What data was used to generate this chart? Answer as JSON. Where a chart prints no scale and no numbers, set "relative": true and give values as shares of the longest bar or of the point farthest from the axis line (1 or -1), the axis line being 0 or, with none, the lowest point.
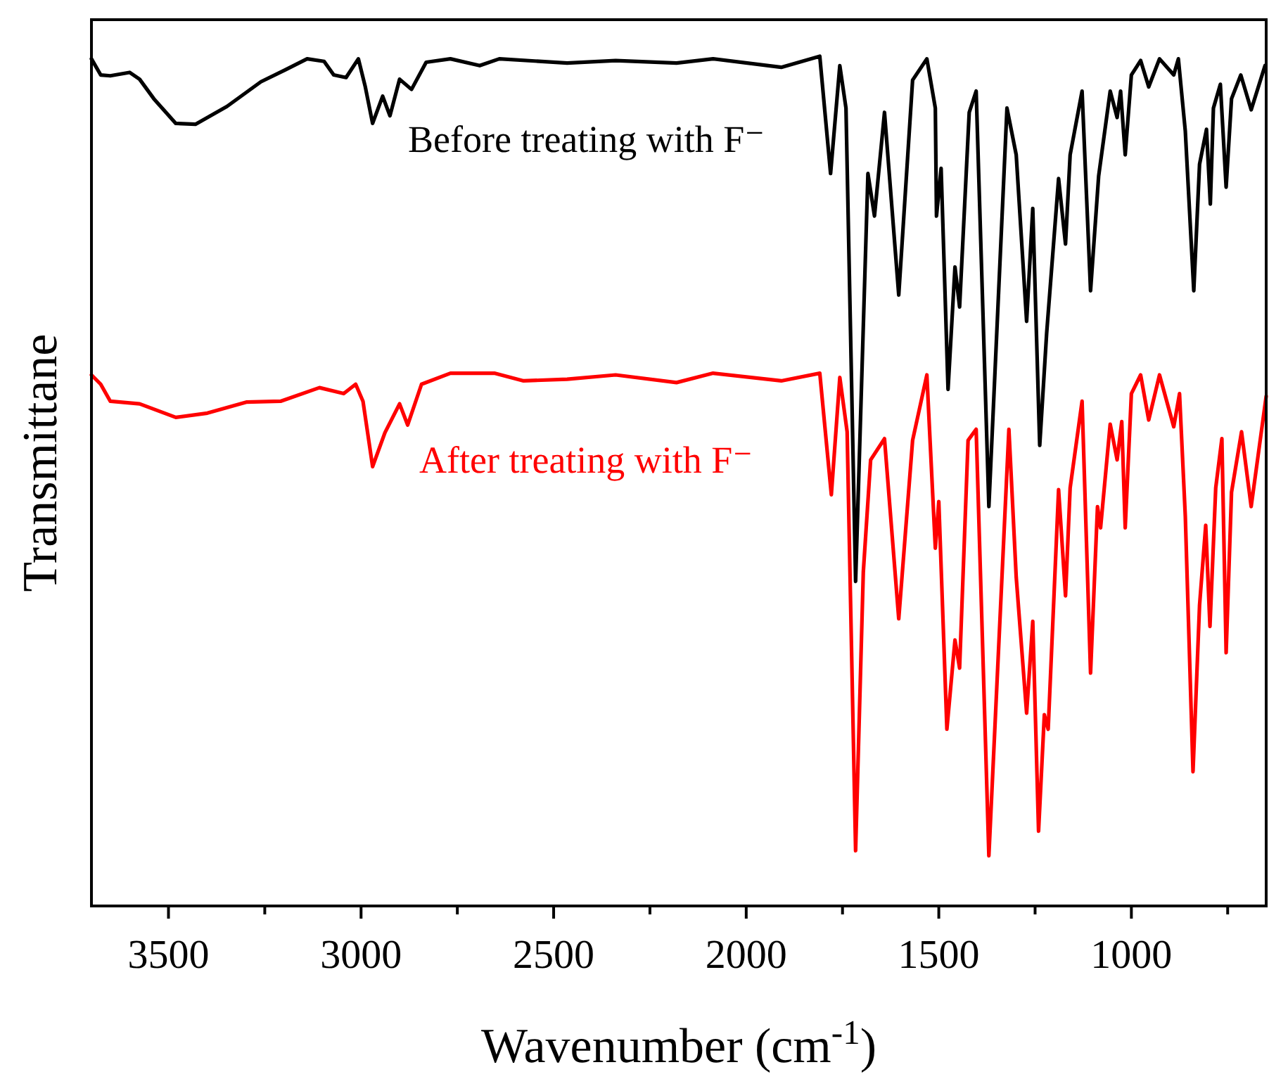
{
  "chart_data": {
    "type": "line",
    "relative": true,
    "xlabel": "Wavenumber (cm$^{-1}$)",
    "ylabel": "Transmittane",
    "xlim": [
      3700,
      650
    ],
    "xticks": [
      3500,
      {
        "value": 3250,
        "label": null
      },
      3000,
      {
        "value": 2750,
        "label": null
      },
      2500,
      {
        "value": 2250,
        "label": null
      },
      2000,
      {
        "value": 1750,
        "label": null
      },
      1500,
      {
        "value": 1250,
        "label": null
      },
      1000,
      {
        "value": 750,
        "label": null
      }
    ],
    "grid": false,
    "line_style": "solid",
    "tick_labels": "x",
    "series": [
      {
        "name": "Before treating with F⁻",
        "color": "#000000",
        "x": [
          3700,
          3676,
          3651,
          3601,
          3575,
          3538,
          3481,
          3430,
          3348,
          3260,
          3197,
          3140,
          3096,
          3071,
          3039,
          3007,
          2989,
          2970,
          2944,
          2925,
          2900,
          2869,
          2831,
          2768,
          2692,
          2641,
          2465,
          2339,
          2181,
          2086,
          1909,
          1809,
          1781,
          1757,
          1741,
          1716,
          1684,
          1667,
          1641,
          1604,
          1568,
          1531,
          1509,
          1506,
          1494,
          1476,
          1458,
          1446,
          1421,
          1403,
          1370,
          1323,
          1299,
          1272,
          1256,
          1238,
          1220,
          1189,
          1171,
          1159,
          1128,
          1106,
          1085,
          1055,
          1037,
          1028,
          1016,
          1000,
          976,
          955,
          927,
          890,
          878,
          860,
          838,
          823,
          805,
          795,
          787,
          769,
          754,
          740,
          716,
          689,
          653
        ],
        "values": [
          0.997,
          0.978,
          0.977,
          0.981,
          0.973,
          0.95,
          0.921,
          0.92,
          0.941,
          0.97,
          0.984,
          0.997,
          0.994,
          0.978,
          0.975,
          0.997,
          0.964,
          0.921,
          0.953,
          0.93,
          0.973,
          0.961,
          0.993,
          0.997,
          0.989,
          0.997,
          0.992,
          0.995,
          0.992,
          0.997,
          0.987,
          1,
          0.862,
          0.989,
          0.939,
          0.382,
          0.862,
          0.812,
          0.934,
          0.719,
          0.972,
          0.997,
          0.939,
          0.812,
          0.868,
          0.608,
          0.752,
          0.705,
          0.934,
          0.959,
          0.47,
          0.939,
          0.884,
          0.688,
          0.821,
          0.542,
          0.674,
          0.856,
          0.779,
          0.884,
          0.959,
          0.724,
          0.859,
          0.959,
          0.928,
          0.959,
          0.884,
          0.978,
          0.995,
          0.964,
          0.997,
          0.978,
          0.997,
          0.912,
          0.724,
          0.873,
          0.914,
          0.826,
          0.939,
          0.967,
          0.846,
          0.95,
          0.978,
          0.937,
          0.989
        ]
      },
      {
        "name": "After treating with F⁻",
        "color": "#ff0000",
        "x": [
          3700,
          3676,
          3651,
          3575,
          3481,
          3399,
          3298,
          3209,
          3108,
          3045,
          3014,
          2995,
          2970,
          2938,
          2900,
          2879,
          2843,
          2768,
          2654,
          2578,
          2465,
          2339,
          2181,
          2086,
          1909,
          1809,
          1779,
          1757,
          1738,
          1716,
          1696,
          1677,
          1641,
          1604,
          1568,
          1531,
          1509,
          1500,
          1479,
          1458,
          1446,
          1424,
          1403,
          1370,
          1318,
          1299,
          1272,
          1256,
          1241,
          1226,
          1216,
          1189,
          1171,
          1159,
          1128,
          1106,
          1088,
          1080,
          1055,
          1037,
          1025,
          1016,
          1000,
          976,
          955,
          927,
          890,
          875,
          860,
          840,
          823,
          807,
          796,
          781,
          765,
          754,
          740,
          714,
          689,
          650
        ],
        "values": [
          0.625,
          0.614,
          0.594,
          0.591,
          0.575,
          0.58,
          0.593,
          0.594,
          0.61,
          0.603,
          0.614,
          0.594,
          0.517,
          0.557,
          0.591,
          0.566,
          0.614,
          0.627,
          0.627,
          0.618,
          0.62,
          0.625,
          0.616,
          0.627,
          0.618,
          0.627,
          0.484,
          0.622,
          0.558,
          0.065,
          0.393,
          0.525,
          0.55,
          0.338,
          0.548,
          0.625,
          0.421,
          0.476,
          0.208,
          0.313,
          0.28,
          0.548,
          0.561,
          0.059,
          0.561,
          0.387,
          0.227,
          0.335,
          0.088,
          0.225,
          0.208,
          0.49,
          0.365,
          0.492,
          0.594,
          0.274,
          0.47,
          0.445,
          0.567,
          0.525,
          0.57,
          0.445,
          0.603,
          0.625,
          0.572,
          0.625,
          0.564,
          0.603,
          0.459,
          0.158,
          0.354,
          0.448,
          0.329,
          0.492,
          0.55,
          0.298,
          0.487,
          0.558,
          0.47,
          0.6
        ]
      }
    ]
  }
}
